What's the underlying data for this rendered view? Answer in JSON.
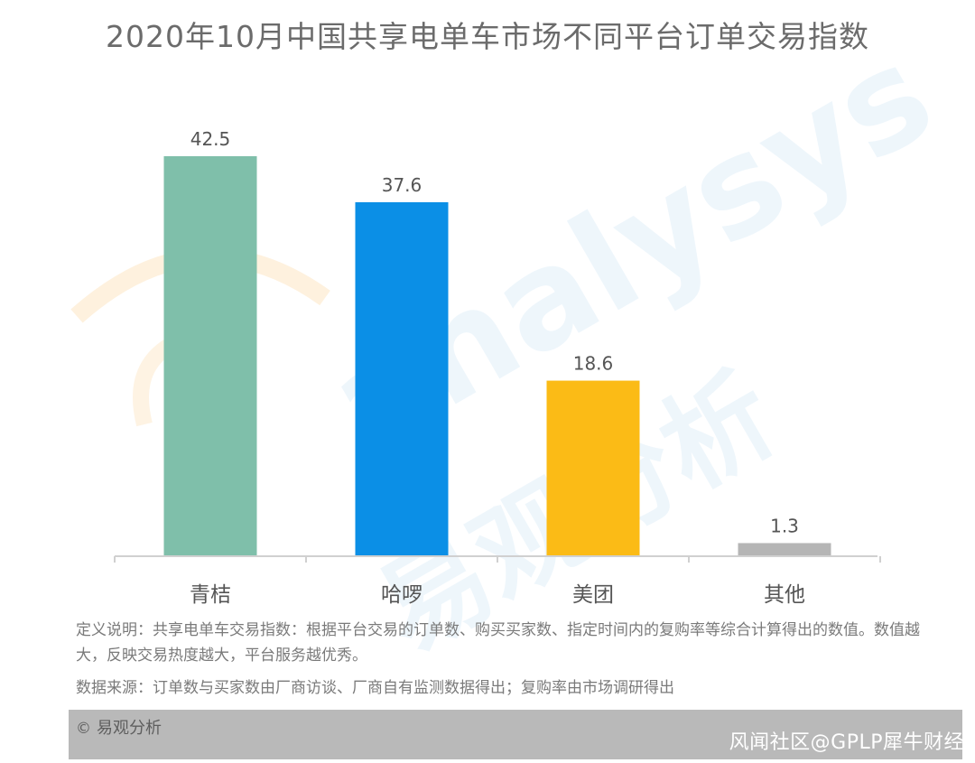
{
  "chart_data": {
    "type": "bar",
    "title": "2020年10月中国共享电单车市场不同平台订单交易指数",
    "categories": [
      "青桔",
      "哈啰",
      "美团",
      "其他"
    ],
    "values": [
      42.5,
      37.6,
      18.6,
      1.3
    ],
    "value_labels": [
      "42.5",
      "37.6",
      "18.6",
      "1.3"
    ],
    "colors": [
      "#7fbfaa",
      "#0b8fe6",
      "#fbbb16",
      "#b5b5b5"
    ],
    "xlabel": "",
    "ylabel": "",
    "ylim": [
      0,
      42.5
    ],
    "grid": false,
    "legend": "none"
  },
  "notes": {
    "definition": "定义说明：共享电单车交易指数：根据平台交易的订单数、购买买家数、指定时间内的复购率等综合计算得出的数值。数值越大，反映交易热度越大，平台服务越优秀。",
    "source": "数据来源：订单数与买家数由厂商访谈、厂商自有监测数据得出；复购率由市场调研得出"
  },
  "footer": {
    "copyright_symbol": "©",
    "brand": "易观分析"
  },
  "watermark": {
    "en": "analysys",
    "cn": "易观分析"
  },
  "source_overlay": "风闻社区@GPLP犀牛财经"
}
